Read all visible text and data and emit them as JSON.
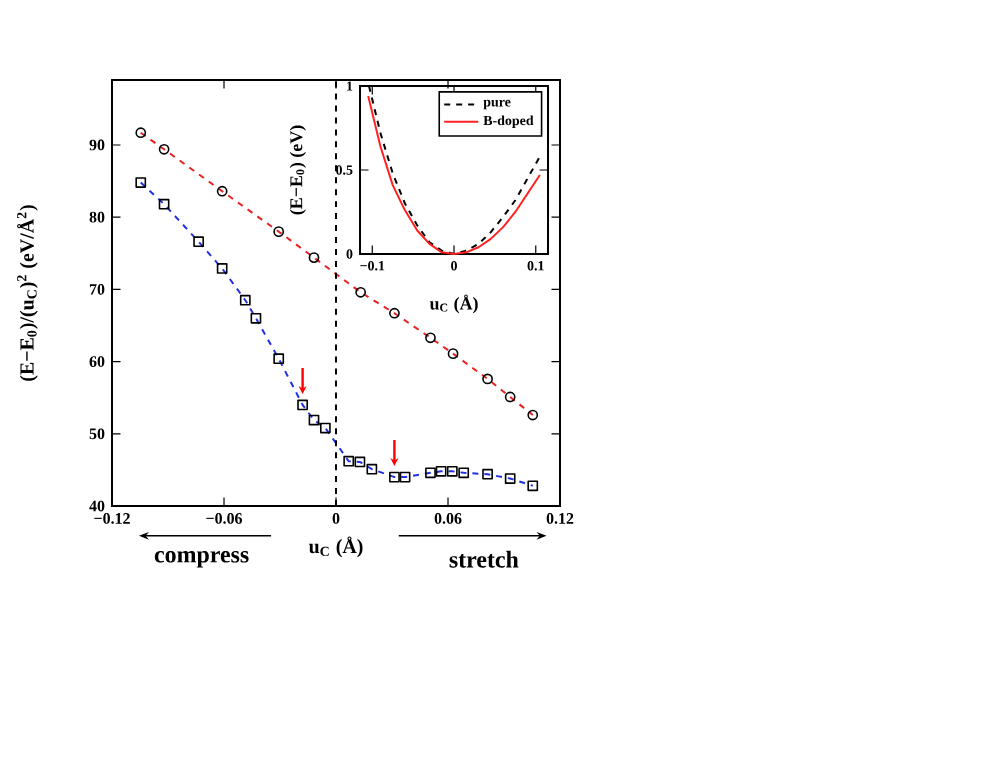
{
  "chart_data": [
    {
      "type": "line",
      "xlabel": "u$_{C}$ (Å)",
      "ylabel": "(E−E$_{0}$)/(u$_{C}$)$^{2}$  (eV/Å$^{2}$)",
      "xlim": [
        -0.12,
        0.12
      ],
      "ylim": [
        40,
        99
      ],
      "xticks": [
        {
          "value": -0.12,
          "label": "−0.12"
        },
        {
          "value": -0.06,
          "label": "−0.06"
        },
        0,
        0.06,
        0.12
      ],
      "yticks": [
        40,
        50,
        60,
        70,
        80,
        90
      ],
      "line_style": "dashed",
      "legend": false,
      "series": [
        {
          "color": "#e82020",
          "marker": "circle",
          "x": [
            -0.1046,
            -0.0921,
            -0.061,
            -0.0307,
            -0.0118,
            0.0132,
            0.0313,
            0.0506,
            0.0627,
            0.0812,
            0.0933,
            0.1054
          ],
          "values": [
            91.7,
            89.4,
            83.6,
            78.0,
            74.4,
            69.6,
            66.7,
            63.3,
            61.1,
            57.6,
            55.1,
            52.6
          ]
        },
        {
          "color": "#2030e0",
          "marker": "square",
          "x": [
            -0.1046,
            -0.0921,
            -0.0736,
            -0.061,
            -0.0486,
            -0.0429,
            -0.0307,
            -0.0179,
            -0.0118,
            -0.0057,
            0.0068,
            0.0128,
            0.0192,
            0.0313,
            0.037,
            0.0506,
            0.0563,
            0.0623,
            0.0684,
            0.0812,
            0.0933,
            0.1054
          ],
          "values": [
            84.8,
            81.8,
            76.6,
            72.9,
            68.5,
            66.0,
            60.4,
            54.0,
            51.9,
            50.8,
            46.2,
            46.1,
            45.1,
            44.0,
            44.0,
            44.6,
            44.8,
            44.8,
            44.6,
            44.4,
            43.8,
            42.8
          ]
        }
      ],
      "ref_lines": [
        {
          "axis": "x",
          "value": 0,
          "color": "#000000",
          "line_style": "dashed"
        }
      ],
      "annotations": [
        "compress",
        "stretch"
      ]
    },
    {
      "type": "line",
      "xlabel": "u$_{C}$ (Å)",
      "ylabel": "(E−E$_{0}$) (eV)",
      "xlim": [
        -0.115,
        0.115
      ],
      "ylim": [
        0,
        1
      ],
      "xticks": [
        {
          "value": -0.1,
          "label": "−0.1"
        },
        0,
        0.1
      ],
      "yticks": [
        0,
        0.5,
        1
      ],
      "legend": "top right",
      "series": [
        {
          "name": "pure",
          "color": "#000000",
          "line_style": "dashed",
          "x": [
            -0.104,
            -0.09,
            -0.075,
            -0.06,
            -0.045,
            -0.03,
            -0.015,
            0,
            0.015,
            0.03,
            0.045,
            0.06,
            0.075,
            0.09,
            0.105
          ],
          "values": [
            1.0,
            0.72,
            0.48,
            0.3,
            0.17,
            0.07,
            0.02,
            0,
            0.02,
            0.06,
            0.13,
            0.22,
            0.32,
            0.45,
            0.58
          ]
        },
        {
          "name": "B-doped",
          "color": "#ff2020",
          "line_style": "solid",
          "x": [
            -0.105,
            -0.09,
            -0.075,
            -0.06,
            -0.045,
            -0.03,
            -0.015,
            0,
            0.015,
            0.03,
            0.045,
            0.06,
            0.075,
            0.09,
            0.105
          ],
          "values": [
            0.94,
            0.64,
            0.41,
            0.26,
            0.14,
            0.06,
            0.01,
            0,
            0.01,
            0.04,
            0.09,
            0.16,
            0.25,
            0.36,
            0.47
          ]
        }
      ]
    }
  ]
}
